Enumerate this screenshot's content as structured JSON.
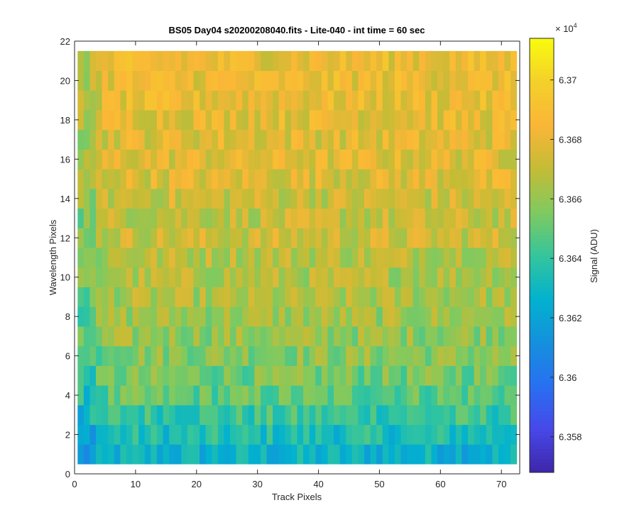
{
  "chart_data": {
    "type": "heatmap",
    "title": "BS05 Day04  s20200208040.fits - Lite-040 - int time = 60 sec",
    "xlabel": "Track Pixels",
    "ylabel": "Wavelength Pixels",
    "xlim": [
      0,
      73
    ],
    "ylim": [
      0,
      22
    ],
    "xticks": [
      "0",
      "10",
      "20",
      "30",
      "40",
      "50",
      "60",
      "70"
    ],
    "yticks": [
      "0",
      "2",
      "4",
      "6",
      "8",
      "10",
      "12",
      "14",
      "16",
      "18",
      "20",
      "22"
    ],
    "x_cells": [
      1,
      72
    ],
    "y_cells": [
      1,
      21
    ],
    "colorbar": {
      "label": "Signal (ADU)",
      "exponent_label": "× 10^4",
      "exponent_base": "× 10",
      "exponent_power": "4",
      "range": [
        6.3568,
        6.3714
      ],
      "ticks": [
        "6.358",
        "6.36",
        "6.362",
        "6.364",
        "6.366",
        "6.368",
        "6.37"
      ],
      "tick_values": [
        6.358,
        6.36,
        6.362,
        6.364,
        6.366,
        6.368,
        6.37
      ],
      "colormap": "parula"
    },
    "row_mean_values": [
      6.3627,
      6.3634,
      6.3641,
      6.3649,
      6.3653,
      6.3658,
      6.366,
      6.3662,
      6.3664,
      6.3666,
      6.3668,
      6.3672,
      6.367,
      6.3672,
      6.3677,
      6.3678,
      6.3678,
      6.368,
      6.3681,
      6.3682,
      6.3682
    ],
    "column_offsets": [
      -0.0014,
      -0.0014,
      -0.0011,
      -0.0007,
      -0.0004,
      -0.0001,
      0.0,
      0.0,
      0.0,
      0.0,
      0.0,
      0.0,
      0.0,
      0.0,
      0.0,
      0.0,
      0.0,
      0.0,
      0.0,
      0.0,
      0.0,
      0.0,
      0.0,
      0.0,
      0.0,
      0.0,
      0.0,
      0.0,
      0.0,
      0.0,
      0.0,
      0.0,
      0.0,
      0.0,
      0.0,
      0.0,
      0.0,
      0.0,
      0.0,
      0.0,
      0.0,
      0.0,
      0.0,
      0.0,
      0.0,
      0.0,
      0.0,
      0.0,
      0.0,
      0.0,
      0.0,
      0.0,
      0.0,
      0.0,
      0.0,
      0.0,
      0.0,
      0.0,
      0.0,
      0.0,
      0.0,
      0.0,
      0.0,
      0.0,
      0.0,
      0.0,
      0.0,
      0.0,
      0.0,
      0.0,
      0.0,
      0.0
    ],
    "noise_amplitude": 0.0012,
    "colors": {
      "axis": "#262626",
      "background": "#ffffff"
    }
  }
}
